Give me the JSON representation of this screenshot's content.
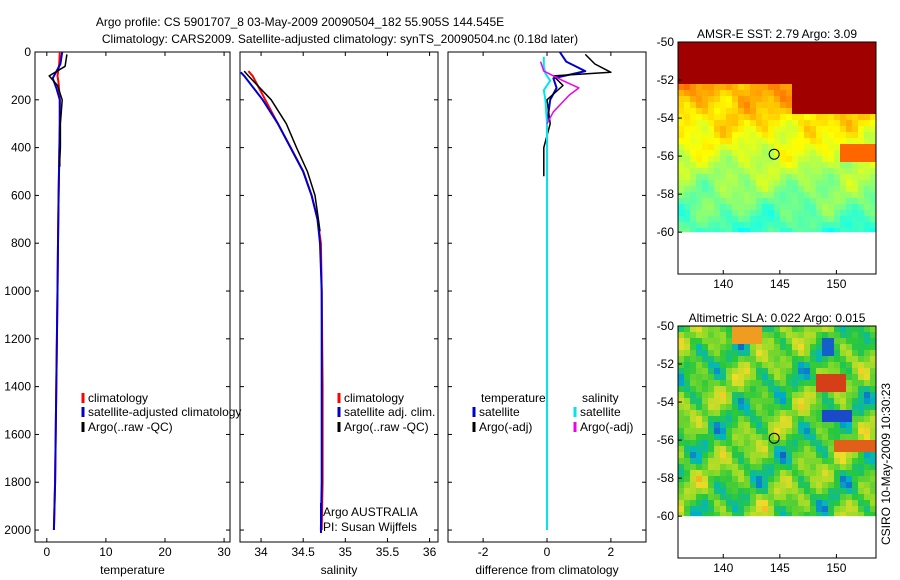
{
  "title_line1": "Argo profile: CS 5901707_8 03-May-2009 20090504_182 55.905S 144.545E",
  "title_line2": "Climatology: CARS2009. Satellite-adjusted climatology: synTS_20090504.nc (0.18d later)",
  "side_label": "CSIRO 10-May-2009 10:30:23",
  "colors": {
    "climatology": "#ff0000",
    "satellite": "#0000cc",
    "argo": "#000000",
    "salinity_satellite": "#00e5ee",
    "salinity_argo": "#ee00ee"
  },
  "chart_data": [
    {
      "type": "line",
      "id": "temperature",
      "xlabel": "temperature",
      "ylabel": "",
      "xlim": [
        -2,
        31
      ],
      "ylim": [
        2050,
        0
      ],
      "xticks": [
        0,
        10,
        20,
        30
      ],
      "xticklabels": [
        "0",
        "10",
        "20",
        "30"
      ],
      "yticks": [
        0,
        200,
        400,
        600,
        800,
        1000,
        1200,
        1400,
        1600,
        1800,
        2000
      ],
      "yticklabels": [
        "0",
        "200",
        "400",
        "600",
        "800",
        "1000",
        "1200",
        "1400",
        "1600",
        "1800",
        "2000"
      ],
      "legend": [
        "climatology",
        "satellite-adjusted climatology",
        "Argo(..raw -QC)"
      ],
      "series": [
        {
          "name": "climatology",
          "color": "#ff0000",
          "width": 2,
          "x": [
            2.2,
            2.1,
            1.8,
            2.0,
            2.2,
            2.2,
            2.1,
            2.0,
            1.9,
            1.8,
            1.6,
            1.4,
            1.2
          ],
          "y": [
            0,
            50,
            100,
            130,
            200,
            300,
            450,
            600,
            800,
            1000,
            1400,
            1800,
            2000
          ]
        },
        {
          "name": "satellite-adjusted climatology",
          "color": "#0000cc",
          "width": 2,
          "x": [
            2.6,
            2.3,
            1.0,
            1.6,
            2.2,
            2.2,
            2.1,
            2.0,
            1.9,
            1.8,
            1.6,
            1.4,
            1.2
          ],
          "y": [
            0,
            50,
            110,
            150,
            200,
            300,
            450,
            600,
            800,
            1000,
            1400,
            1800,
            2000
          ]
        },
        {
          "name": "Argo(..raw -QC)",
          "color": "#000000",
          "width": 1.5,
          "x": [
            3.4,
            3.1,
            0.4,
            1.8,
            2.6,
            2.3,
            2.3,
            2.2,
            2.2
          ],
          "y": [
            10,
            60,
            100,
            140,
            200,
            300,
            400,
            450,
            480
          ]
        }
      ]
    },
    {
      "type": "line",
      "id": "salinity",
      "xlabel": "salinity",
      "ylabel": "",
      "xlim": [
        33.75,
        36.1
      ],
      "ylim": [
        2050,
        0
      ],
      "xticks": [
        34,
        34.5,
        35,
        35.5,
        36
      ],
      "xticklabels": [
        "34",
        "34.5",
        "35",
        "35.5",
        "36"
      ],
      "legend": [
        "climatology",
        "satellite adj. clim.",
        "Argo(..raw -QC)"
      ],
      "annotations": [
        "Argo AUSTRALIA",
        "PI: Susan Wijffels"
      ],
      "series": [
        {
          "name": "climatology",
          "color": "#ff0000",
          "width": 2,
          "x": [
            33.85,
            33.9,
            34.05,
            34.2,
            34.35,
            34.5,
            34.6,
            34.67,
            34.71,
            34.72,
            34.73,
            34.73,
            34.72
          ],
          "y": [
            80,
            100,
            200,
            300,
            400,
            500,
            600,
            700,
            800,
            1000,
            1400,
            1800,
            2000
          ]
        },
        {
          "name": "satellite adj. clim.",
          "color": "#0000cc",
          "width": 2,
          "x": [
            33.76,
            33.8,
            34.02,
            34.2,
            34.35,
            34.5,
            34.6,
            34.67,
            34.7,
            34.72,
            34.72,
            34.72,
            34.71
          ],
          "y": [
            85,
            100,
            200,
            300,
            400,
            500,
            600,
            700,
            800,
            1000,
            1400,
            1800,
            2000
          ]
        },
        {
          "name": "Argo(..raw -QC)",
          "color": "#000000",
          "width": 1.5,
          "x": [
            33.8,
            33.85,
            34.12,
            34.3,
            34.42,
            34.55,
            34.64,
            34.68,
            34.7
          ],
          "y": [
            80,
            100,
            200,
            300,
            400,
            500,
            600,
            700,
            750
          ]
        }
      ]
    },
    {
      "type": "line",
      "id": "difference",
      "xlabel": "difference from climatology",
      "ylabel": "",
      "xlim": [
        -3.1,
        3.1
      ],
      "ylim": [
        2050,
        0
      ],
      "xticks": [
        -2,
        0,
        2
      ],
      "xticklabels": [
        "-2",
        "0",
        "2"
      ],
      "legend_headers": [
        "temperature",
        "salinity"
      ],
      "legend": [
        "satellite",
        "Argo(-adj)",
        "satellite",
        "Argo(-adj)"
      ],
      "series": [
        {
          "name": "temperature satellite",
          "color": "#0000cc",
          "width": 2,
          "x": [
            0.4,
            0.6,
            1.2,
            0.2,
            0.3,
            0.1,
            0,
            0,
            0
          ],
          "y": [
            0,
            40,
            80,
            110,
            150,
            200,
            300,
            400,
            2000
          ]
        },
        {
          "name": "temperature Argo(-adj)",
          "color": "#000000",
          "width": 1.5,
          "x": [
            1.2,
            1.5,
            2.0,
            0.2,
            0.5,
            0.0,
            0.1,
            -0.1,
            -0.1
          ],
          "y": [
            10,
            50,
            85,
            100,
            140,
            200,
            300,
            400,
            520
          ]
        },
        {
          "name": "salinity satellite",
          "color": "#00e5ee",
          "width": 2,
          "x": [
            -0.1,
            -0.1,
            -0.05,
            0.1,
            -0.1,
            -0.05,
            0,
            0,
            0,
            0
          ],
          "y": [
            20,
            60,
            90,
            120,
            160,
            200,
            300,
            400,
            1000,
            2000
          ]
        },
        {
          "name": "salinity Argo(-adj)",
          "color": "#ee00ee",
          "width": 1.5,
          "x": [
            -0.2,
            -0.1,
            0.5,
            1.0,
            0.7,
            0.2,
            0.0
          ],
          "y": [
            40,
            80,
            120,
            150,
            180,
            250,
            300
          ]
        }
      ]
    },
    {
      "type": "heatmap",
      "id": "sst_map",
      "title": "AMSR-E SST: 2.79  Argo: 3.09",
      "xlim": [
        136,
        153.5
      ],
      "ylim": [
        -62.2,
        -50
      ],
      "xticks": [
        140,
        145,
        150
      ],
      "xticklabels": [
        "140",
        "145",
        "150"
      ],
      "yticks": [
        -50,
        -52,
        -54,
        -56,
        -58,
        -60
      ],
      "yticklabels": [
        "-50",
        "-52",
        "-54",
        "-56",
        "-58",
        "-60"
      ],
      "data_region": {
        "lon": [
          136,
          153.5
        ],
        "lat": [
          -60,
          -50
        ]
      },
      "marker": {
        "lon": 144.5,
        "lat": -55.9
      }
    },
    {
      "type": "heatmap",
      "id": "sla_map",
      "title": "Altimetric SLA: 0.022  Argo: 0.015",
      "xlim": [
        136,
        153.5
      ],
      "ylim": [
        -62.2,
        -50
      ],
      "xticks": [
        140,
        145,
        150
      ],
      "xticklabels": [
        "140",
        "145",
        "150"
      ],
      "yticks": [
        -50,
        -52,
        -54,
        -56,
        -58,
        -60
      ],
      "yticklabels": [
        "-50",
        "-52",
        "-54",
        "-56",
        "-58",
        "-60"
      ],
      "data_region": {
        "lon": [
          136,
          153.5
        ],
        "lat": [
          -60,
          -50
        ]
      },
      "marker": {
        "lon": 144.5,
        "lat": -55.9
      }
    }
  ]
}
